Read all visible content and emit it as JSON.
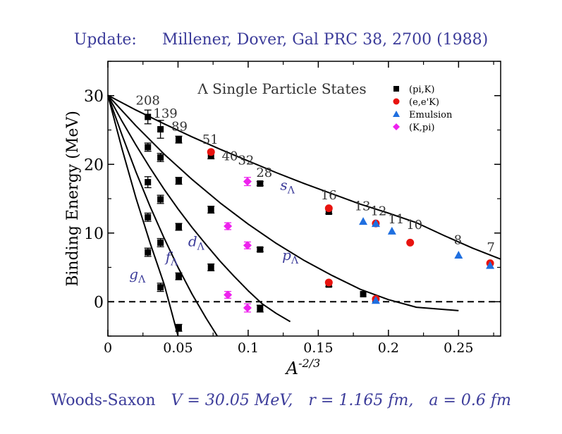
{
  "header": {
    "label": "Update:",
    "reference": "Millener, Dover, Gal PRC 38, 2700 (1988)"
  },
  "footer": {
    "model": "Woods-Saxon",
    "potential": "V = 30.05 MeV,",
    "radius": "r = 1.165 fm,",
    "diffuseness": "a = 0.6 fm"
  },
  "chart_data": {
    "type": "scatter",
    "title": "Λ Single Particle States",
    "xlabel": "A^-2/3",
    "ylabel": "Binding Energy (MeV)",
    "xlim": [
      0,
      0.28
    ],
    "ylim": [
      -5,
      35
    ],
    "x_ticks": [
      "0",
      "0.05",
      "0.1",
      "0.15",
      "0.2",
      "0.25"
    ],
    "y_ticks": [
      "0",
      "10",
      "20",
      "30"
    ],
    "legend_position": "top-right",
    "colors": {
      "pik": "#000000",
      "eek": "#e8130f",
      "emulsion": "#1f6fe0",
      "kpi": "#ee22ee",
      "curve": "#000000",
      "label": "#3c3c9a"
    },
    "series": [
      {
        "name": "(pi,K)",
        "marker": "square",
        "color": "#000000",
        "points": [
          {
            "x": 0.0285,
            "y": 26.9,
            "err": 1.0
          },
          {
            "x": 0.0285,
            "y": 22.5,
            "err": 0.6
          },
          {
            "x": 0.0285,
            "y": 17.4,
            "err": 0.8
          },
          {
            "x": 0.0285,
            "y": 12.3,
            "err": 0.6
          },
          {
            "x": 0.0285,
            "y": 7.2,
            "err": 0.6
          },
          {
            "x": 0.0375,
            "y": 25.1,
            "err": 1.3
          },
          {
            "x": 0.0375,
            "y": 21.0,
            "err": 0.6
          },
          {
            "x": 0.0375,
            "y": 14.9,
            "err": 0.6
          },
          {
            "x": 0.0375,
            "y": 8.6,
            "err": 0.6
          },
          {
            "x": 0.0375,
            "y": 2.1,
            "err": 0.6
          },
          {
            "x": 0.0505,
            "y": 23.6,
            "err": 0.5
          },
          {
            "x": 0.0505,
            "y": 17.6,
            "err": 0.5
          },
          {
            "x": 0.0505,
            "y": 10.9,
            "err": 0.5
          },
          {
            "x": 0.0505,
            "y": 3.7,
            "err": 0.5
          },
          {
            "x": 0.0505,
            "y": -3.8,
            "err": 0.5
          },
          {
            "x": 0.0735,
            "y": 21.3,
            "err": 0.5
          },
          {
            "x": 0.0735,
            "y": 13.4,
            "err": 0.5
          },
          {
            "x": 0.0735,
            "y": 5.0,
            "err": 0.5
          },
          {
            "x": 0.1085,
            "y": 17.2,
            "err": 0.3
          },
          {
            "x": 0.1085,
            "y": 7.6,
            "err": 0.3
          },
          {
            "x": 0.1085,
            "y": -1.0,
            "err": 0.5
          },
          {
            "x": 0.1575,
            "y": 13.1,
            "err": 0.3
          },
          {
            "x": 0.1575,
            "y": 2.5,
            "err": 0.3
          },
          {
            "x": 0.182,
            "y": 1.1,
            "err": 0.0
          }
        ]
      },
      {
        "name": "(e,e'K)",
        "marker": "circle",
        "color": "#e8130f",
        "points": [
          {
            "x": 0.0735,
            "y": 21.8
          },
          {
            "x": 0.1575,
            "y": 13.6
          },
          {
            "x": 0.1575,
            "y": 2.8
          },
          {
            "x": 0.191,
            "y": 11.4
          },
          {
            "x": 0.191,
            "y": 0.4
          },
          {
            "x": 0.2155,
            "y": 8.6
          },
          {
            "x": 0.2725,
            "y": 5.6
          }
        ]
      },
      {
        "name": "Emulsion",
        "marker": "triangle",
        "color": "#1f6fe0",
        "points": [
          {
            "x": 0.182,
            "y": 11.7
          },
          {
            "x": 0.191,
            "y": 11.4
          },
          {
            "x": 0.2025,
            "y": 10.3
          },
          {
            "x": 0.25,
            "y": 6.8
          },
          {
            "x": 0.2725,
            "y": 5.3
          },
          {
            "x": 0.191,
            "y": 0.2
          }
        ]
      },
      {
        "name": "(K,pi)",
        "marker": "diamond",
        "color": "#ee22ee",
        "points": [
          {
            "x": 0.0995,
            "y": 17.5,
            "err": 0.6
          },
          {
            "x": 0.0855,
            "y": 11.0,
            "err": 0.5
          },
          {
            "x": 0.0995,
            "y": 8.2,
            "err": 0.5
          },
          {
            "x": 0.0855,
            "y": 1.0,
            "err": 0.5
          },
          {
            "x": 0.0995,
            "y": -0.9,
            "err": 0.6
          }
        ]
      }
    ],
    "curves": [
      {
        "label": "s_Λ",
        "points": [
          [
            0,
            30.05
          ],
          [
            0.02,
            27.9
          ],
          [
            0.04,
            25.9
          ],
          [
            0.06,
            24.0
          ],
          [
            0.08,
            22.2
          ],
          [
            0.1,
            20.5
          ],
          [
            0.12,
            18.8
          ],
          [
            0.14,
            17.2
          ],
          [
            0.16,
            15.7
          ],
          [
            0.18,
            14.2
          ],
          [
            0.2,
            12.9
          ],
          [
            0.22,
            11.5
          ],
          [
            0.24,
            9.6
          ],
          [
            0.26,
            7.8
          ],
          [
            0.28,
            6.2
          ]
        ]
      },
      {
        "label": "p_Λ",
        "points": [
          [
            0,
            30.05
          ],
          [
            0.02,
            25.6
          ],
          [
            0.04,
            21.5
          ],
          [
            0.06,
            17.8
          ],
          [
            0.08,
            14.4
          ],
          [
            0.1,
            11.3
          ],
          [
            0.12,
            8.5
          ],
          [
            0.14,
            6.0
          ],
          [
            0.16,
            3.8
          ],
          [
            0.18,
            1.8
          ],
          [
            0.2,
            0.3
          ],
          [
            0.22,
            -0.8
          ],
          [
            0.25,
            -1.3
          ]
        ]
      },
      {
        "label": "d_Λ",
        "points": [
          [
            0,
            30.05
          ],
          [
            0.01,
            26.3
          ],
          [
            0.02,
            22.8
          ],
          [
            0.03,
            19.5
          ],
          [
            0.04,
            16.4
          ],
          [
            0.05,
            13.5
          ],
          [
            0.06,
            10.8
          ],
          [
            0.07,
            8.3
          ],
          [
            0.08,
            5.9
          ],
          [
            0.09,
            3.7
          ],
          [
            0.1,
            1.6
          ],
          [
            0.11,
            -0.3
          ],
          [
            0.12,
            -1.7
          ],
          [
            0.13,
            -2.9
          ]
        ]
      },
      {
        "label": "f_Λ",
        "points": [
          [
            0,
            30.05
          ],
          [
            0.01,
            24.3
          ],
          [
            0.02,
            18.9
          ],
          [
            0.03,
            13.9
          ],
          [
            0.04,
            9.3
          ],
          [
            0.05,
            5.0
          ],
          [
            0.06,
            1.1
          ],
          [
            0.07,
            -2.4
          ],
          [
            0.078,
            -5.0
          ]
        ]
      },
      {
        "label": "g_Λ",
        "points": [
          [
            0,
            30.05
          ],
          [
            0.01,
            22.3
          ],
          [
            0.02,
            15.1
          ],
          [
            0.03,
            8.6
          ],
          [
            0.04,
            2.6
          ],
          [
            0.0435,
            0.0
          ],
          [
            0.05,
            -5.0
          ]
        ]
      }
    ],
    "curve_labels": [
      {
        "text": "s",
        "sub": "Λ",
        "x": 0.128,
        "y": 16.3
      },
      {
        "text": "p",
        "sub": "Λ",
        "x": 0.13,
        "y": 6.1
      },
      {
        "text": "d",
        "sub": "Λ",
        "x": 0.063,
        "y": 8.1
      },
      {
        "text": "f",
        "sub": "Λ",
        "x": 0.0455,
        "y": 5.8
      },
      {
        "text": "g",
        "sub": "Λ",
        "x": 0.021,
        "y": 3.3
      }
    ],
    "mass_labels": [
      {
        "text": "208",
        "x": 0.0285,
        "y": 28.7
      },
      {
        "text": "139",
        "x": 0.041,
        "y": 26.8
      },
      {
        "text": "89",
        "x": 0.051,
        "y": 24.9
      },
      {
        "text": "51",
        "x": 0.073,
        "y": 23.0
      },
      {
        "text": "40",
        "x": 0.087,
        "y": 20.6
      },
      {
        "text": "32",
        "x": 0.0985,
        "y": 20.0
      },
      {
        "text": "28",
        "x": 0.1115,
        "y": 18.2
      },
      {
        "text": "16",
        "x": 0.1575,
        "y": 14.9
      },
      {
        "text": "13",
        "x": 0.1815,
        "y": 13.3
      },
      {
        "text": "12",
        "x": 0.193,
        "y": 12.6
      },
      {
        "text": "11",
        "x": 0.2055,
        "y": 11.4
      },
      {
        "text": "10",
        "x": 0.2185,
        "y": 10.6
      },
      {
        "text": "8",
        "x": 0.2495,
        "y": 8.4
      },
      {
        "text": "7",
        "x": 0.273,
        "y": 7.3
      }
    ]
  }
}
